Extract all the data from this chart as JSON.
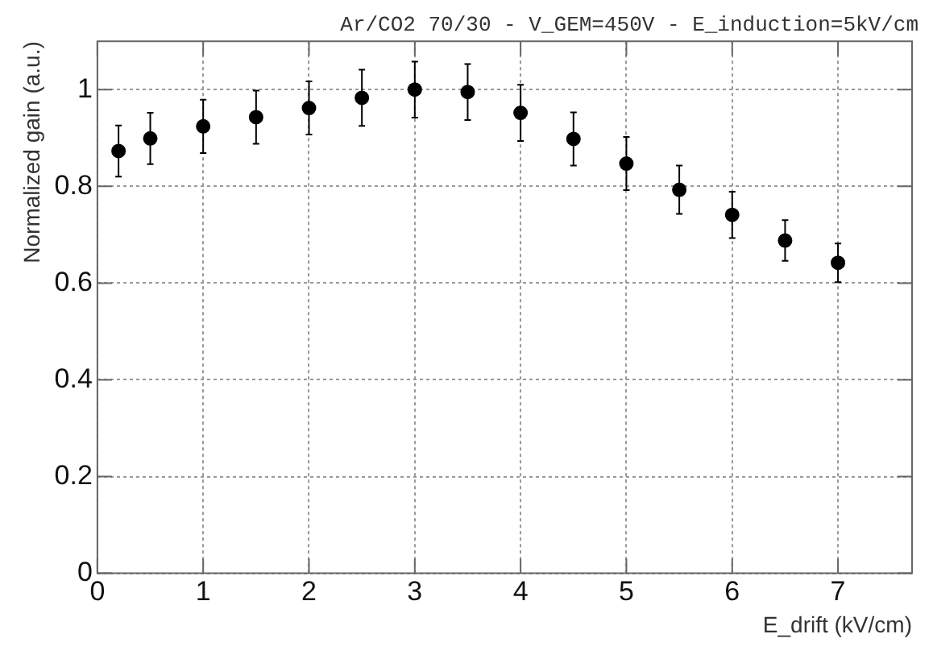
{
  "chart_data": {
    "type": "scatter",
    "title": "Ar/CO2 70/30 - V_GEM=450V - E_induction=5kV/cm",
    "xlabel": "E_drift (kV/cm)",
    "ylabel": "Normalized gain (a.u.)",
    "x": [
      0.2,
      0.5,
      1,
      1.5,
      2,
      2.5,
      3,
      3.5,
      4,
      4.5,
      5,
      5.5,
      6,
      6.5,
      7
    ],
    "values": [
      0.873,
      0.899,
      0.924,
      0.943,
      0.962,
      0.983,
      1.0,
      0.995,
      0.952,
      0.898,
      0.847,
      0.793,
      0.741,
      0.688,
      0.642
    ],
    "errors": [
      0.053,
      0.053,
      0.055,
      0.055,
      0.055,
      0.058,
      0.058,
      0.058,
      0.058,
      0.055,
      0.055,
      0.05,
      0.048,
      0.042,
      0.04
    ],
    "color": "#000000",
    "marker": "circle",
    "xlim": [
      0,
      7.7
    ],
    "xticks": [
      0,
      1,
      2,
      3,
      4,
      5,
      6,
      7
    ],
    "ylim": [
      0,
      1.1
    ],
    "yticks": [
      0,
      0.2,
      0.4,
      0.6,
      0.8,
      1
    ],
    "grid": true,
    "legend": false
  }
}
